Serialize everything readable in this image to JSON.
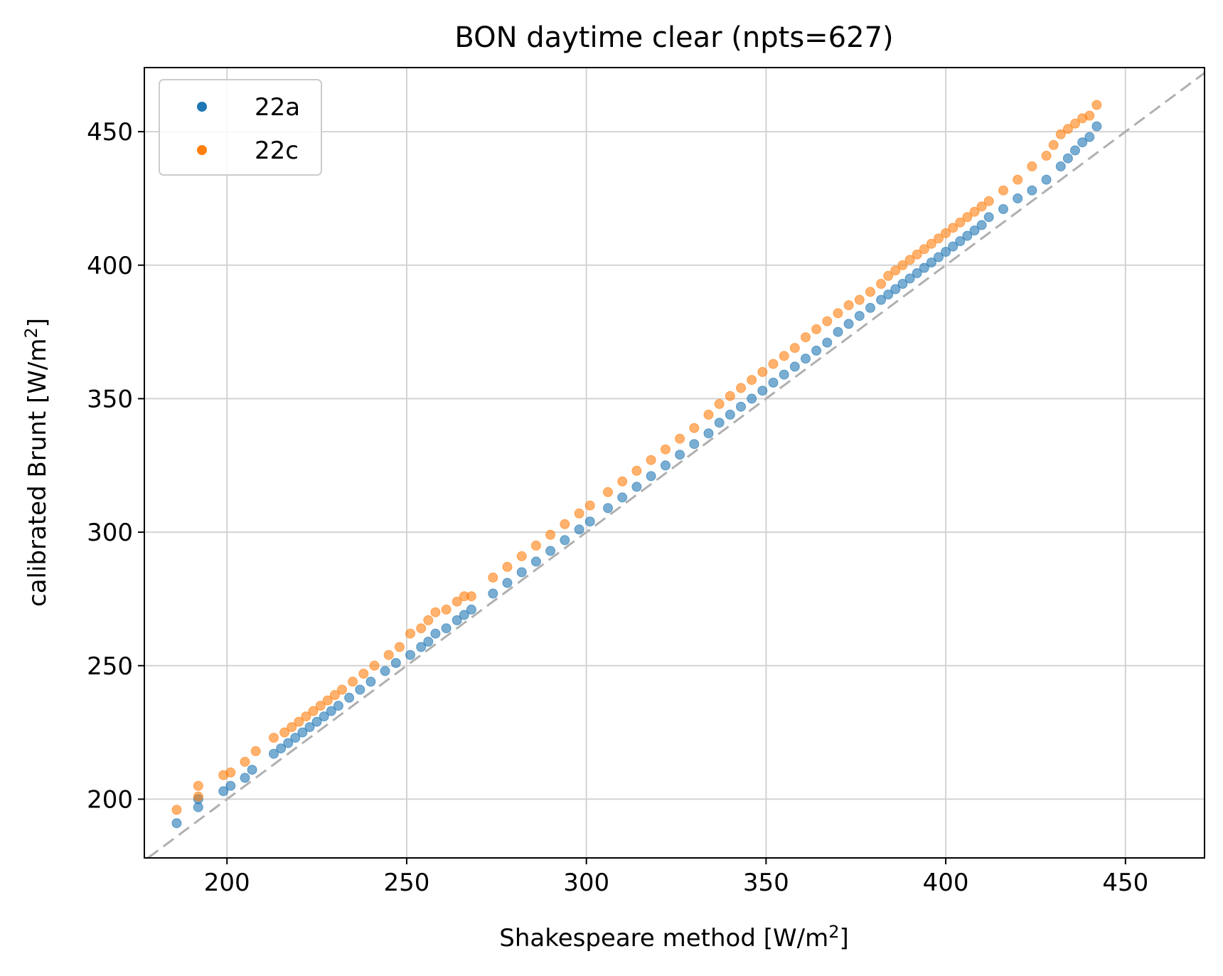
{
  "chart_data": {
    "type": "scatter",
    "title": "BON daytime clear (npts=627)",
    "xlabel": {
      "prefix": "Shakespeare method [W/m",
      "sup": "2",
      "suffix": "]"
    },
    "ylabel": {
      "prefix": "calibrated Brunt [W/m",
      "sup": "2",
      "suffix": "]"
    },
    "xlim": [
      177,
      472
    ],
    "ylim": [
      178,
      474
    ],
    "xticks": [
      "200",
      "250",
      "300",
      "350",
      "400",
      "450"
    ],
    "xtick_values": [
      200,
      250,
      300,
      350,
      400,
      450
    ],
    "yticks": [
      "200",
      "250",
      "300",
      "350",
      "400",
      "450"
    ],
    "ytick_values": [
      200,
      250,
      300,
      350,
      400,
      450
    ],
    "grid": true,
    "legend_position": "upper-left",
    "reference_line": {
      "style": "dashed",
      "color": "#b0b0b0",
      "slope": 1,
      "intercept": 0
    },
    "series": [
      {
        "name": "22a",
        "color": "#1f77b4",
        "x": [
          186,
          192,
          192,
          199,
          201,
          205,
          207,
          213,
          215,
          217,
          219,
          221,
          223,
          225,
          227,
          229,
          231,
          234,
          237,
          240,
          244,
          247,
          251,
          254,
          256,
          258,
          261,
          264,
          266,
          268,
          274,
          278,
          282,
          286,
          290,
          294,
          298,
          301,
          306,
          310,
          314,
          318,
          322,
          326,
          330,
          334,
          337,
          340,
          343,
          346,
          349,
          352,
          355,
          358,
          361,
          364,
          367,
          370,
          373,
          376,
          379,
          382,
          384,
          386,
          388,
          390,
          392,
          394,
          396,
          398,
          400,
          402,
          404,
          406,
          408,
          410,
          412,
          416,
          420,
          424,
          428,
          432,
          434,
          436,
          438,
          440,
          442
        ],
        "y": [
          191,
          197,
          200,
          203,
          205,
          208,
          211,
          217,
          219,
          221,
          223,
          225,
          227,
          229,
          231,
          233,
          235,
          238,
          241,
          244,
          248,
          251,
          254,
          257,
          259,
          262,
          264,
          267,
          269,
          271,
          277,
          281,
          285,
          289,
          293,
          297,
          301,
          304,
          309,
          313,
          317,
          321,
          325,
          329,
          333,
          337,
          341,
          344,
          347,
          350,
          353,
          356,
          359,
          362,
          365,
          368,
          371,
          375,
          378,
          381,
          384,
          387,
          389,
          391,
          393,
          395,
          397,
          399,
          401,
          403,
          405,
          407,
          409,
          411,
          413,
          415,
          418,
          421,
          425,
          428,
          432,
          437,
          440,
          443,
          446,
          448,
          452
        ]
      },
      {
        "name": "22c",
        "color": "#ff7f0e",
        "x": [
          186,
          192,
          192,
          199,
          201,
          205,
          208,
          213,
          216,
          218,
          220,
          222,
          224,
          226,
          228,
          230,
          232,
          235,
          238,
          241,
          245,
          248,
          251,
          254,
          256,
          258,
          261,
          264,
          266,
          268,
          274,
          278,
          282,
          286,
          290,
          294,
          298,
          301,
          306,
          310,
          314,
          318,
          322,
          326,
          330,
          334,
          337,
          340,
          343,
          346,
          349,
          352,
          355,
          358,
          361,
          364,
          367,
          370,
          373,
          376,
          379,
          382,
          384,
          386,
          388,
          390,
          392,
          394,
          396,
          398,
          400,
          402,
          404,
          406,
          408,
          410,
          412,
          416,
          420,
          424,
          428,
          430,
          432,
          434,
          436,
          438,
          440,
          442
        ],
        "y": [
          196,
          201,
          205,
          209,
          210,
          214,
          218,
          223,
          225,
          227,
          229,
          231,
          233,
          235,
          237,
          239,
          241,
          244,
          247,
          250,
          254,
          257,
          262,
          264,
          267,
          270,
          271,
          274,
          276,
          276,
          283,
          287,
          291,
          295,
          299,
          303,
          307,
          310,
          315,
          319,
          323,
          327,
          331,
          335,
          339,
          344,
          348,
          351,
          354,
          357,
          360,
          363,
          366,
          369,
          373,
          376,
          379,
          382,
          385,
          387,
          390,
          393,
          396,
          398,
          400,
          402,
          404,
          406,
          408,
          410,
          412,
          414,
          416,
          418,
          420,
          422,
          424,
          428,
          432,
          437,
          441,
          445,
          449,
          451,
          453,
          455,
          456,
          460
        ]
      }
    ]
  }
}
